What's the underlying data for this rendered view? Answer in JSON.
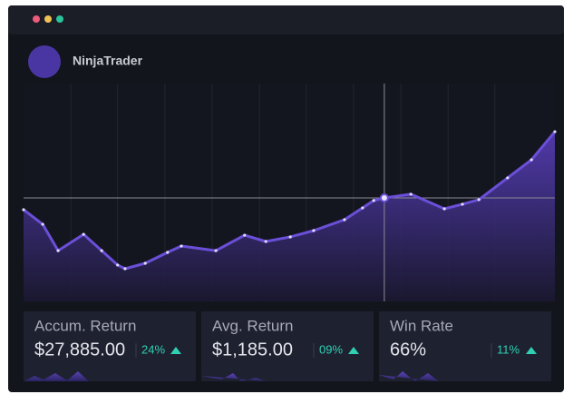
{
  "header": {
    "title": "NinjaTrader"
  },
  "chart_data": {
    "type": "area",
    "x": [
      0,
      3.6,
      6.5,
      11.3,
      14.7,
      17.7,
      19.1,
      22.9,
      27.1,
      29.7,
      36.2,
      41.6,
      45.6,
      50.2,
      54.6,
      60.4,
      63.8,
      65.9,
      67.9,
      72.9,
      79.2,
      82.6,
      85.7,
      91.1,
      95.6,
      100
    ],
    "values": [
      42.1,
      35.4,
      23.3,
      30.8,
      23.3,
      16.7,
      15,
      17.5,
      22.5,
      25.4,
      23.3,
      30.4,
      27.5,
      29.6,
      32.5,
      37.5,
      42.9,
      46.3,
      47.5,
      49.2,
      42.5,
      44.6,
      46.7,
      56.7,
      65,
      77.9
    ],
    "color": "#6b4fd8",
    "xlim": [
      0,
      100
    ],
    "ylim": [
      0,
      100
    ],
    "xticks": [
      8.9,
      17.7,
      26.6,
      35.5,
      44.4,
      53.2,
      62.1,
      71,
      79.9,
      88.7
    ],
    "grid": true,
    "crosshair": {
      "x": 67.9,
      "y": 47.5
    }
  },
  "cards": [
    {
      "label": "Accum. Return",
      "value": "$27,885.00",
      "change": "24%"
    },
    {
      "label": "Avg. Return",
      "value": "$1,185.00",
      "change": "09%"
    },
    {
      "label": "Win Rate",
      "value": "66%",
      "change": "11%"
    }
  ]
}
